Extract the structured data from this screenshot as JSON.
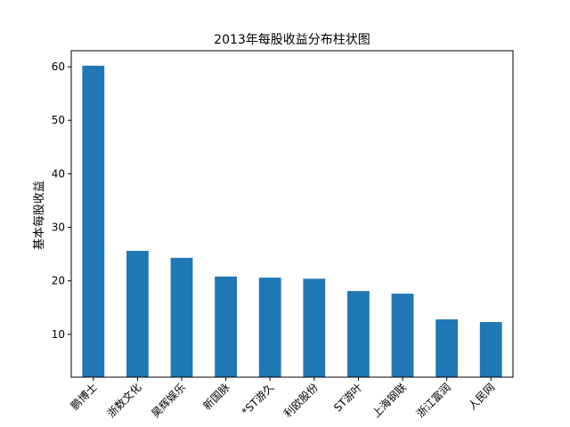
{
  "chart_data": {
    "type": "bar",
    "title": "2013年每股收益分布柱状图",
    "xlabel": "",
    "ylabel": "基本每股收益",
    "categories": [
      "鹏博士",
      "浙数文化",
      "昊辉娱乐",
      "新国脉",
      "*ST游久",
      "利欧股份",
      "ST游叶",
      "上海钢联",
      "浙江富润",
      "人民网"
    ],
    "values": [
      60.2,
      25.6,
      24.3,
      20.8,
      20.6,
      20.4,
      18.1,
      17.6,
      12.8,
      12.3
    ],
    "ylim": [
      2,
      63
    ],
    "yticks": [
      10,
      20,
      30,
      40,
      50,
      60
    ],
    "grid": false,
    "bar_color": "#1f77b4",
    "xtick_rotation": 45
  }
}
